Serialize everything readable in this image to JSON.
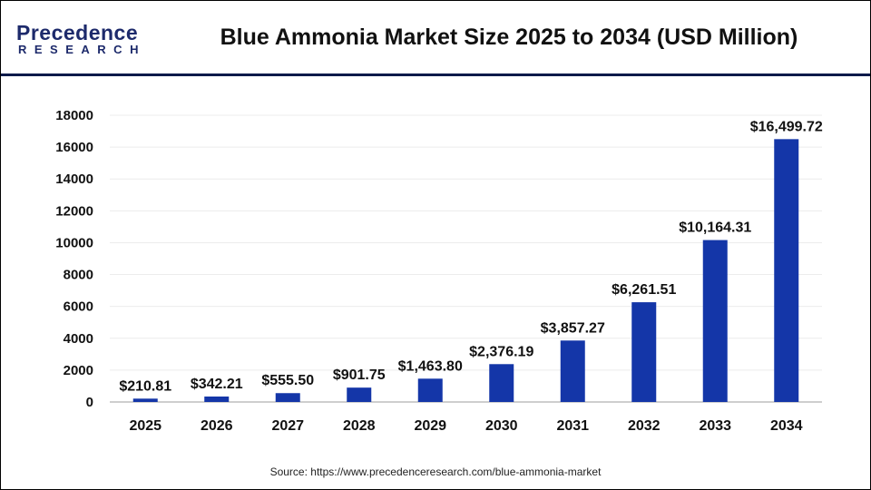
{
  "logo": {
    "line1": "Precedence",
    "line2": "RESEARCH"
  },
  "header": {
    "title": "Blue Ammonia Market Size 2025 to 2034 (USD Million)"
  },
  "source": "Source: https://www.precedenceresearch.com/blue-ammonia-market",
  "chart_data": {
    "type": "bar",
    "title": "Blue Ammonia Market Size 2025 to 2034 (USD Million)",
    "categories": [
      "2025",
      "2026",
      "2027",
      "2028",
      "2029",
      "2030",
      "2031",
      "2032",
      "2033",
      "2034"
    ],
    "values": [
      210.81,
      342.21,
      555.5,
      901.75,
      1463.8,
      2376.19,
      3857.27,
      6261.51,
      10164.31,
      16499.72
    ],
    "data_labels": [
      "$210.81",
      "$342.21",
      "$555.50",
      "$901.75",
      "$1,463.80",
      "$2,376.19",
      "$3,857.27",
      "$6,261.51",
      "$10,164.31",
      "$16,499.72"
    ],
    "yticks": [
      "0",
      "2000",
      "4000",
      "6000",
      "8000",
      "10000",
      "12000",
      "14000",
      "16000",
      "18000"
    ],
    "ylim": [
      0,
      18000
    ],
    "xlabel": "",
    "ylabel": "",
    "grid": true,
    "bar_color": "#1436a8"
  }
}
